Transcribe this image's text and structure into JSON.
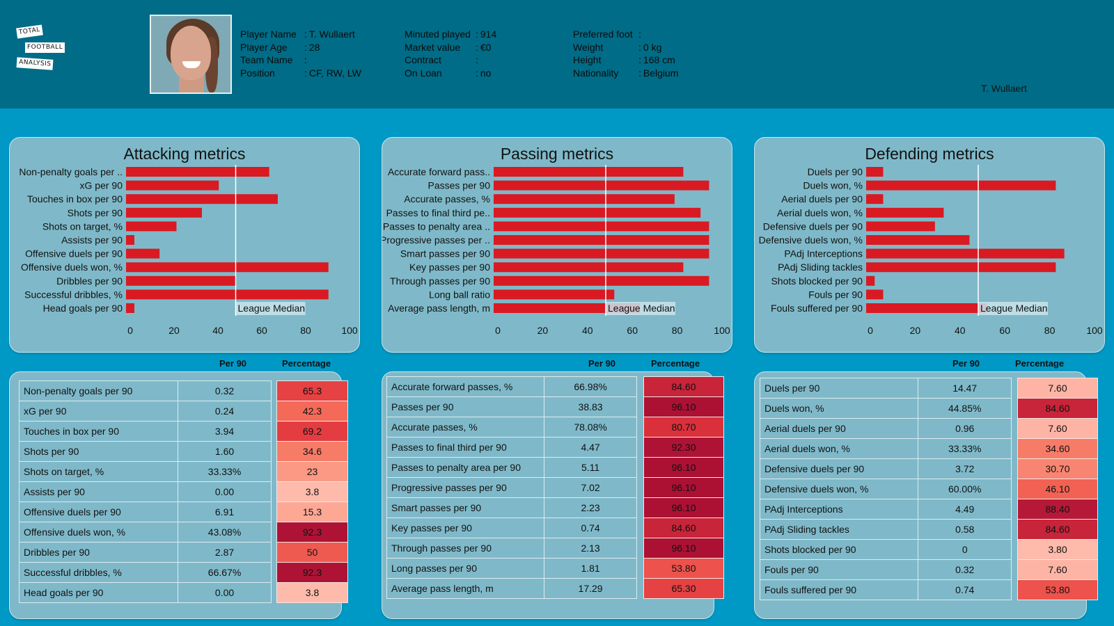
{
  "brand": {
    "logo_words": [
      "TOTAL",
      "FOOTBALL",
      "ANALYSIS"
    ]
  },
  "player": {
    "photo_alt": "player-photo",
    "info_col1": [
      {
        "key": "Player Name",
        "sep": ":",
        "value": "T. Wullaert"
      },
      {
        "key": "Player Age",
        "sep": ":",
        "value": "28"
      },
      {
        "key": "Team Name",
        "sep": ":",
        "value": ""
      },
      {
        "key": "Position",
        "sep": ":",
        "value": "CF, RW, LW"
      }
    ],
    "info_col2": [
      {
        "key": "Minuted played",
        "sep": ":",
        "value": "914"
      },
      {
        "key": "Market value",
        "sep": ":",
        "value": "€0"
      },
      {
        "key": "Contract",
        "sep": ":",
        "value": ""
      },
      {
        "key": "On Loan",
        "sep": ":",
        "value": "no"
      }
    ],
    "info_col3": [
      {
        "key": "Preferred foot",
        "sep": ":",
        "value": ""
      },
      {
        "key": "Weight",
        "sep": ":",
        "value": "0 kg"
      },
      {
        "key": "Height",
        "sep": ":",
        "value": "168 cm"
      },
      {
        "key": "Nationality",
        "sep": ":",
        "value": "Belgium"
      }
    ],
    "subtitle_name": "T. Wullaert"
  },
  "colors": {
    "header_bg": "#006c87",
    "page_bg": "#0099c6",
    "panel_bg": "#7fb9c9",
    "bar": "#d91a22",
    "median_line": "#ffffff"
  },
  "table_headers": {
    "per90": "Per 90",
    "percentage": "Percentage"
  },
  "chart_data": [
    {
      "type": "bar",
      "orientation": "horizontal",
      "title": "Attacking metrics",
      "categories": [
        "Non-penalty goals per ..",
        "xG per 90",
        "Touches in box per 90",
        "Shots per 90",
        "Shots on target, %",
        "Assists per 90",
        "Offensive duels per 90",
        "Offensive duels won, %",
        "Dribbles per 90",
        "Successful dribbles, %",
        "Head goals per 90"
      ],
      "values": [
        65.3,
        42.3,
        69.2,
        34.6,
        23,
        3.8,
        15.3,
        92.3,
        50,
        92.3,
        3.8
      ],
      "xlim": [
        0,
        100
      ],
      "xticks": [
        0,
        20,
        40,
        60,
        80,
        100
      ],
      "median": 50,
      "median_label": "League Median",
      "grid": false
    },
    {
      "type": "bar",
      "orientation": "horizontal",
      "title": "Passing metrics",
      "categories": [
        "Accurate forward pass..",
        "Passes per 90",
        "Accurate passes, %",
        "Passes to final third pe..",
        "Passes to penalty area ..",
        "Progressive passes per ..",
        "Smart passes per 90",
        "Key passes per 90",
        "Through passes per 90",
        "Long ball ratio",
        "Average pass length, m"
      ],
      "values": [
        84.6,
        96.1,
        80.7,
        92.3,
        96.1,
        96.1,
        96.1,
        84.6,
        96.1,
        53.8,
        65.3
      ],
      "xlim": [
        0,
        100
      ],
      "xticks": [
        0,
        20,
        40,
        60,
        80,
        100
      ],
      "median": 50,
      "median_label": "League Median",
      "grid": false
    },
    {
      "type": "bar",
      "orientation": "horizontal",
      "title": "Defending metrics",
      "categories": [
        "Duels per 90",
        "Duels won, %",
        "Aerial duels per 90",
        "Aerial duels won, %",
        "Defensive duels per 90",
        "Defensive duels won, %",
        "PAdj Interceptions",
        "PAdj Sliding tackles",
        "Shots blocked per 90",
        "Fouls per 90",
        "Fouls suffered per 90"
      ],
      "values": [
        7.6,
        84.6,
        7.6,
        34.6,
        30.7,
        46.1,
        88.4,
        84.6,
        3.8,
        7.6,
        53.8
      ],
      "xlim": [
        0,
        100
      ],
      "xticks": [
        0,
        20,
        40,
        60,
        80,
        100
      ],
      "median": 50,
      "median_label": "League Median",
      "grid": false
    }
  ],
  "tables": [
    {
      "rows": [
        {
          "name": "Non-penalty goals per 90",
          "per90": "0.32",
          "pct": "65.3",
          "pct_value": 65.3
        },
        {
          "name": "xG per 90",
          "per90": "0.24",
          "pct": "42.3",
          "pct_value": 42.3
        },
        {
          "name": "Touches in box per 90",
          "per90": "3.94",
          "pct": "69.2",
          "pct_value": 69.2
        },
        {
          "name": "Shots per 90",
          "per90": "1.60",
          "pct": "34.6",
          "pct_value": 34.6
        },
        {
          "name": "Shots on target, %",
          "per90": "33.33%",
          "pct": "23",
          "pct_value": 23
        },
        {
          "name": "Assists per 90",
          "per90": "0.00",
          "pct": "3.8",
          "pct_value": 3.8
        },
        {
          "name": "Offensive duels per 90",
          "per90": "6.91",
          "pct": "15.3",
          "pct_value": 15.3
        },
        {
          "name": "Offensive duels won, %",
          "per90": "43.08%",
          "pct": "92.3",
          "pct_value": 92.3
        },
        {
          "name": "Dribbles per 90",
          "per90": "2.87",
          "pct": "50",
          "pct_value": 50
        },
        {
          "name": "Successful dribbles, %",
          "per90": "66.67%",
          "pct": "92.3",
          "pct_value": 92.3
        },
        {
          "name": "Head goals per 90",
          "per90": "0.00",
          "pct": "3.8",
          "pct_value": 3.8
        }
      ]
    },
    {
      "rows": [
        {
          "name": "Accurate forward passes, %",
          "per90": "66.98%",
          "pct": "84.60",
          "pct_value": 84.6
        },
        {
          "name": "Passes per 90",
          "per90": "38.83",
          "pct": "96.10",
          "pct_value": 96.1
        },
        {
          "name": "Accurate passes, %",
          "per90": "78.08%",
          "pct": "80.70",
          "pct_value": 80.7
        },
        {
          "name": "Passes to final third per 90",
          "per90": "4.47",
          "pct": "92.30",
          "pct_value": 92.3
        },
        {
          "name": "Passes to penalty area per 90",
          "per90": "5.11",
          "pct": "96.10",
          "pct_value": 96.1
        },
        {
          "name": "Progressive passes per 90",
          "per90": "7.02",
          "pct": "96.10",
          "pct_value": 96.1
        },
        {
          "name": "Smart passes per 90",
          "per90": "2.23",
          "pct": "96.10",
          "pct_value": 96.1
        },
        {
          "name": "Key passes per 90",
          "per90": "0.74",
          "pct": "84.60",
          "pct_value": 84.6
        },
        {
          "name": "Through passes per 90",
          "per90": "2.13",
          "pct": "96.10",
          "pct_value": 96.1
        },
        {
          "name": "Long passes per 90",
          "per90": "1.81",
          "pct": "53.80",
          "pct_value": 53.8
        },
        {
          "name": "Average pass length, m",
          "per90": "17.29",
          "pct": "65.30",
          "pct_value": 65.3
        }
      ]
    },
    {
      "rows": [
        {
          "name": "Duels per 90",
          "per90": "14.47",
          "pct": "7.60",
          "pct_value": 7.6
        },
        {
          "name": "Duels won, %",
          "per90": "44.85%",
          "pct": "84.60",
          "pct_value": 84.6
        },
        {
          "name": "Aerial duels per 90",
          "per90": "0.96",
          "pct": "7.60",
          "pct_value": 7.6
        },
        {
          "name": "Aerial duels won, %",
          "per90": "33.33%",
          "pct": "34.60",
          "pct_value": 34.6
        },
        {
          "name": "Defensive duels per 90",
          "per90": "3.72",
          "pct": "30.70",
          "pct_value": 30.7
        },
        {
          "name": "Defensive duels won, %",
          "per90": "60.00%",
          "pct": "46.10",
          "pct_value": 46.1
        },
        {
          "name": "PAdj Interceptions",
          "per90": "4.49",
          "pct": "88.40",
          "pct_value": 88.4
        },
        {
          "name": "PAdj Sliding tackles",
          "per90": "0.58",
          "pct": "84.60",
          "pct_value": 84.6
        },
        {
          "name": "Shots blocked per 90",
          "per90": "0",
          "pct": "3.80",
          "pct_value": 3.8
        },
        {
          "name": "Fouls per 90",
          "per90": "0.32",
          "pct": "7.60",
          "pct_value": 7.6
        },
        {
          "name": "Fouls suffered per 90",
          "per90": "0.74",
          "pct": "53.80",
          "pct_value": 53.8
        }
      ]
    }
  ]
}
